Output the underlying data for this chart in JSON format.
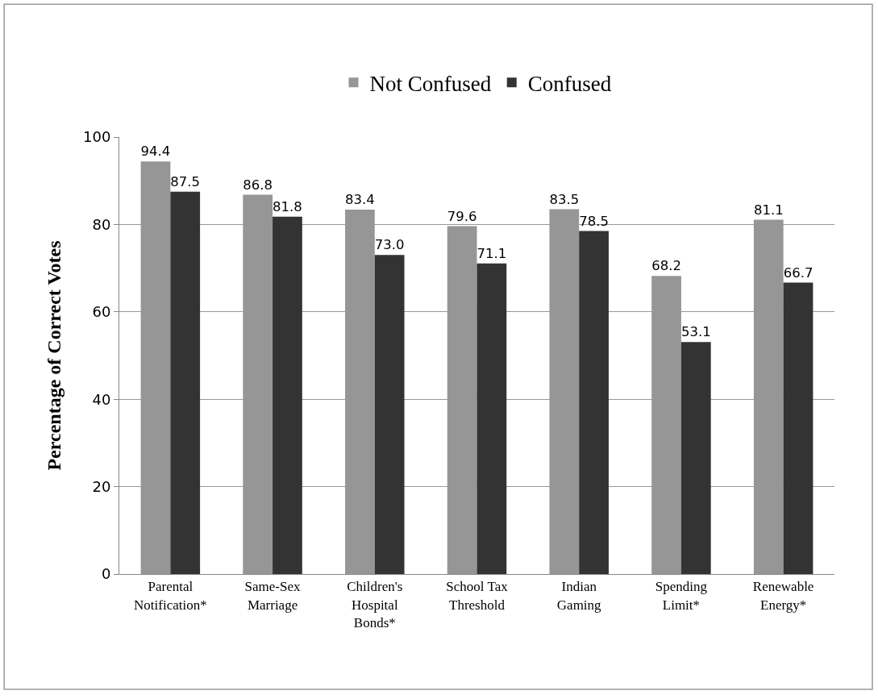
{
  "chart_data": {
    "type": "bar",
    "ylabel": "Percentage of Correct Votes",
    "categories": [
      "Parental Notification*",
      "Same-Sex Marriage",
      "Children's Hospital Bonds*",
      "School Tax Threshold",
      "Indian Gaming",
      "Spending Limit*",
      "Renewable Energy*"
    ],
    "series": [
      {
        "name": "Not Confused",
        "color": "#969696",
        "values": [
          94.4,
          86.8,
          83.4,
          79.6,
          83.5,
          68.2,
          81.1
        ],
        "value_labels": [
          "94.4",
          "86.8",
          "83.4",
          "79.6",
          "83.5",
          "68.2",
          "81.1"
        ]
      },
      {
        "name": "Confused",
        "color": "#333333",
        "values": [
          87.5,
          81.8,
          73.0,
          71.1,
          78.5,
          53.1,
          66.7
        ],
        "value_labels": [
          "87.5",
          "81.8",
          "73.0",
          "71.1",
          "78.5",
          "53.1",
          "66.7"
        ]
      }
    ],
    "ylim": [
      0,
      100
    ],
    "yticks": [
      0,
      20,
      40,
      60,
      80,
      100
    ],
    "grid": "y",
    "legend": "top"
  }
}
